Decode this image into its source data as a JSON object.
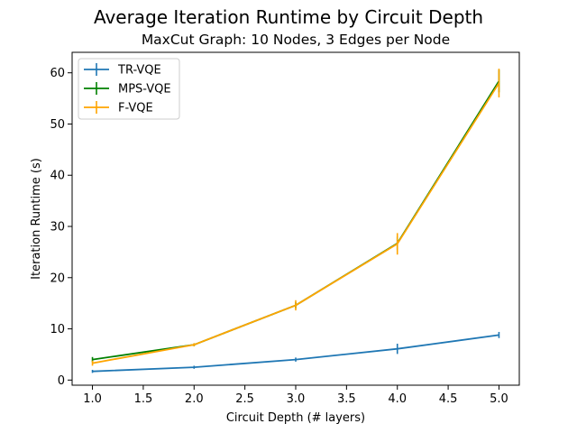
{
  "chart_data": {
    "type": "line",
    "title": "Average Iteration Runtime by Circuit Depth",
    "subtitle": "MaxCut Graph: 10 Nodes, 3 Edges per Node",
    "xlabel": "Circuit Depth (# layers)",
    "ylabel": "Iteration Runtime (s)",
    "xlim": [
      0.8,
      5.2
    ],
    "ylim": [
      -1,
      64
    ],
    "xticks": [
      1.0,
      1.5,
      2.0,
      2.5,
      3.0,
      3.5,
      4.0,
      4.5,
      5.0
    ],
    "yticks": [
      0,
      10,
      20,
      30,
      40,
      50,
      60
    ],
    "xtick_labels": [
      "1.0",
      "1.5",
      "2.0",
      "2.5",
      "3.0",
      "3.5",
      "4.0",
      "4.5",
      "5.0"
    ],
    "ytick_labels": [
      "0",
      "10",
      "20",
      "30",
      "40",
      "50",
      "60"
    ],
    "grid": false,
    "legend_position": "top-left",
    "x": [
      1,
      2,
      3,
      4,
      5
    ],
    "series": [
      {
        "name": "TR-VQE",
        "color": "#1f77b4",
        "values": [
          1.7,
          2.5,
          4.0,
          6.1,
          8.8
        ],
        "errors": [
          0.3,
          0.3,
          0.4,
          1.0,
          0.6
        ]
      },
      {
        "name": "MPS-VQE",
        "color": "#008000",
        "values": [
          4.0,
          6.9,
          14.6,
          26.7,
          58.4
        ],
        "errors": [
          0.5,
          0.3,
          0.6,
          1.3,
          2.2
        ]
      },
      {
        "name": "F-VQE",
        "color": "#ffa500",
        "values": [
          3.3,
          6.9,
          14.6,
          26.6,
          58.0
        ],
        "errors": [
          0.5,
          0.3,
          1.0,
          2.1,
          2.8
        ]
      }
    ]
  }
}
